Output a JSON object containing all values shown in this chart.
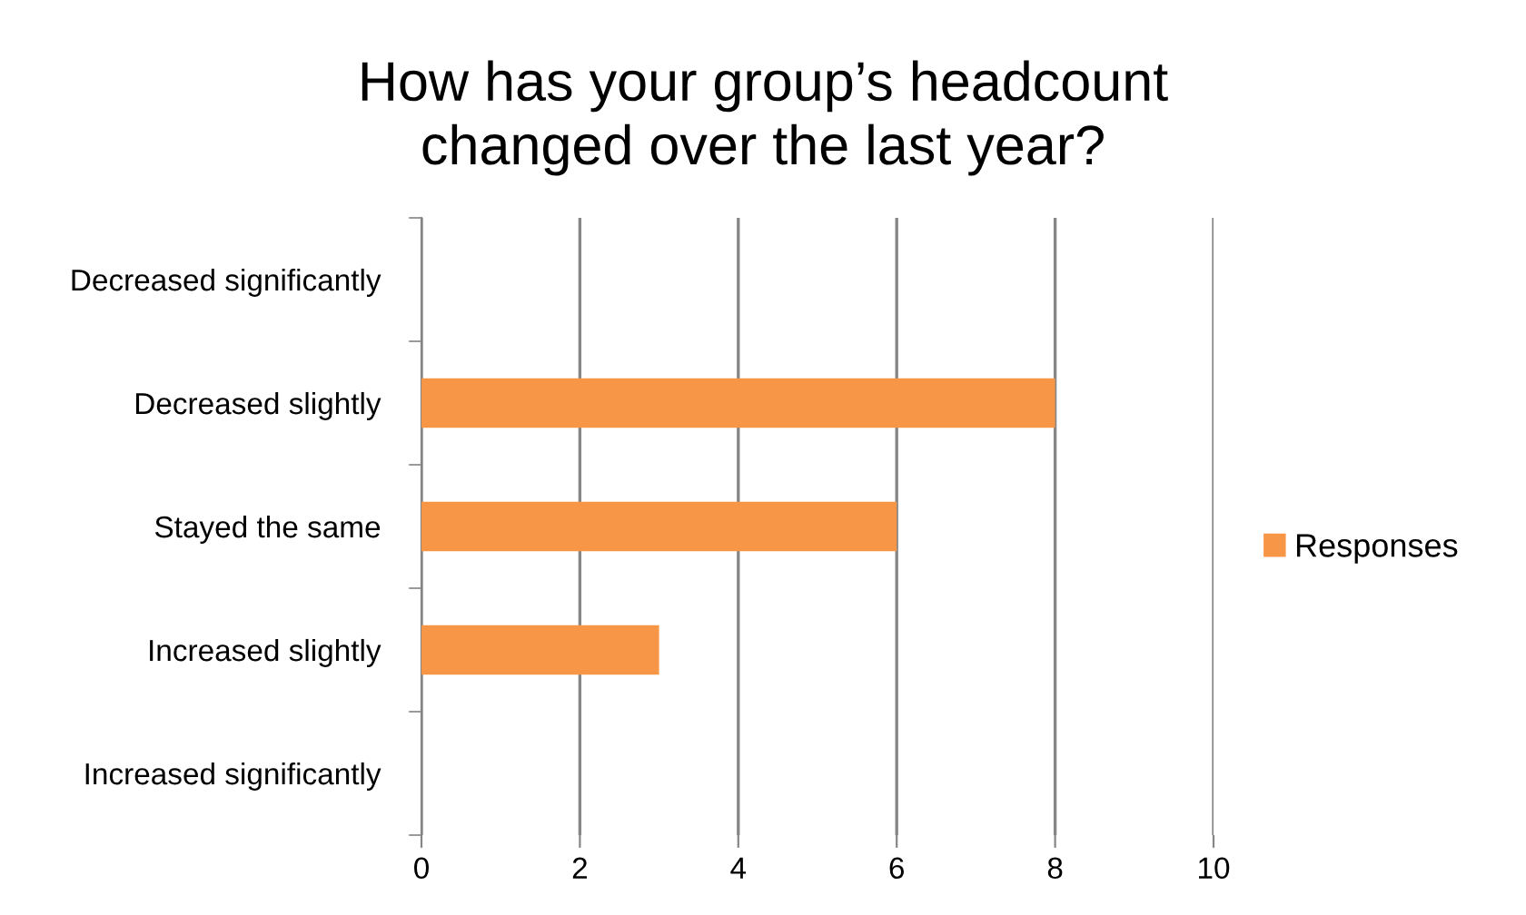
{
  "chart_data": {
    "type": "bar",
    "orientation": "horizontal",
    "title": "How has your group’s headcount\nchanged over the last year?",
    "categories": [
      "Decreased significantly",
      "Decreased slightly",
      "Stayed the same",
      "Increased slightly",
      "Increased significantly"
    ],
    "series": [
      {
        "name": "Responses",
        "color": "#f79646",
        "values": [
          0,
          8,
          6,
          3,
          0
        ]
      }
    ],
    "xlim": [
      0,
      10
    ],
    "xticks": [
      0,
      2,
      4,
      6,
      8,
      10
    ],
    "grid": "x",
    "legend": "right"
  }
}
